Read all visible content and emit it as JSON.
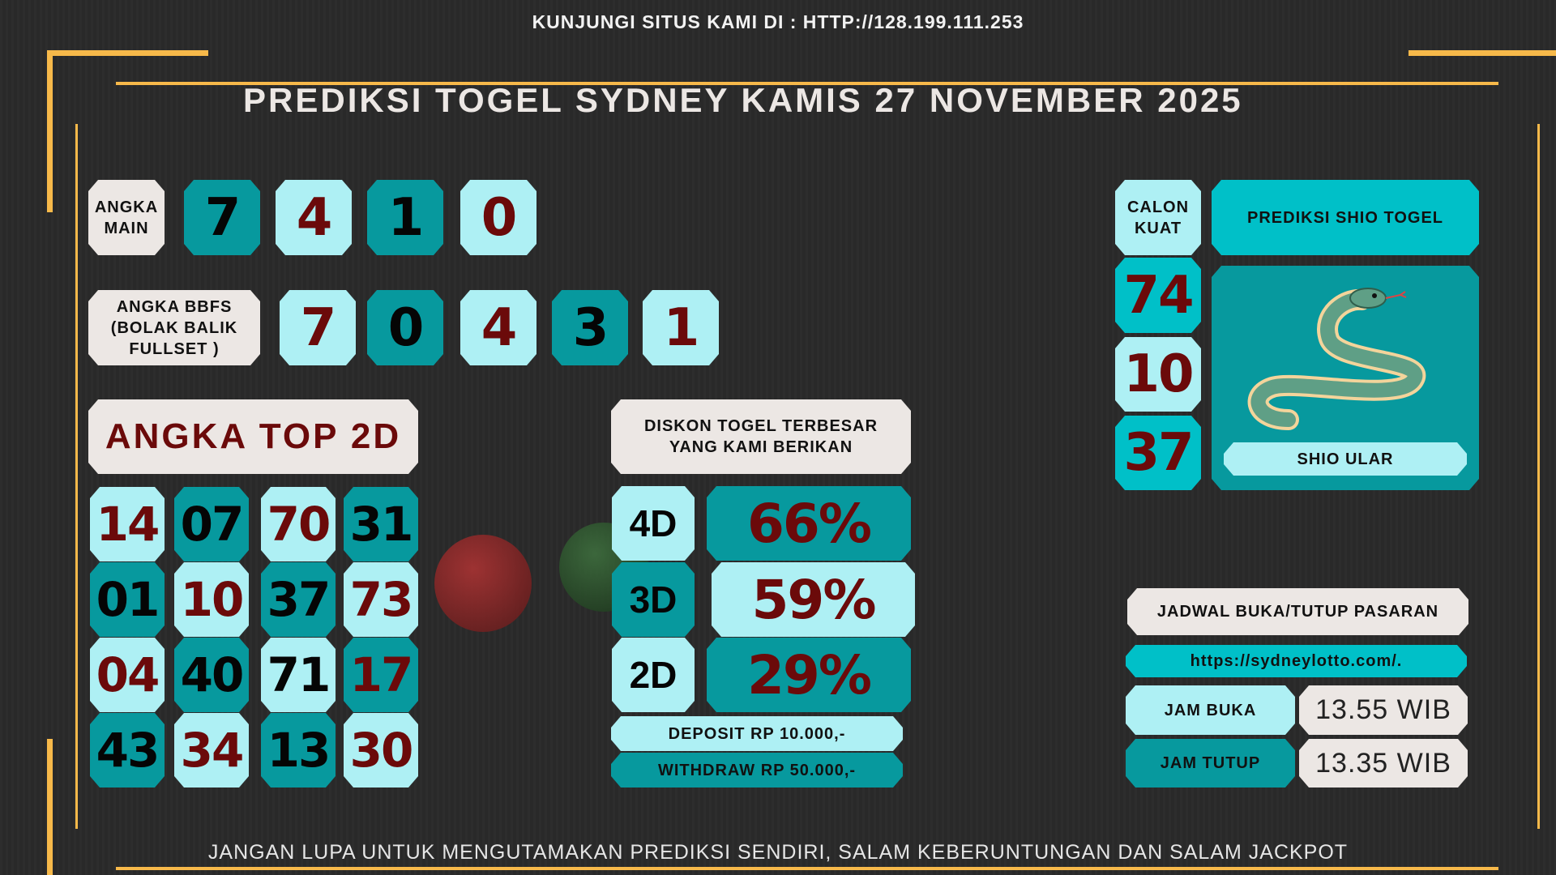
{
  "header": {
    "visit": "KUNJUNGI SITUS KAMI DI : HTTP://128.199.111.253",
    "title": "PREDIKSI TOGEL SYDNEY KAMIS 27 NOVEMBER 2025"
  },
  "angka_main": {
    "label": "ANGKA MAIN",
    "numbers": [
      "7",
      "4",
      "1",
      "0"
    ]
  },
  "bbfs": {
    "label": "ANGKA BBFS (BOLAK BALIK FULLSET )",
    "numbers": [
      "7",
      "0",
      "4",
      "3",
      "1"
    ]
  },
  "top2d": {
    "label": "ANGKA TOP 2D",
    "rows": [
      [
        "14",
        "07",
        "70",
        "31"
      ],
      [
        "01",
        "10",
        "37",
        "73"
      ],
      [
        "04",
        "40",
        "71",
        "17"
      ],
      [
        "43",
        "34",
        "13",
        "30"
      ]
    ]
  },
  "diskon": {
    "label": "DISKON TOGEL TERBESAR YANG KAMI BERIKAN",
    "items": [
      {
        "type": "4D",
        "value": "66%"
      },
      {
        "type": "3D",
        "value": "59%"
      },
      {
        "type": "2D",
        "value": "29%"
      }
    ],
    "deposit": "DEPOSIT RP 10.000,-",
    "withdraw": "WITHDRAW RP 50.000,-"
  },
  "calon_kuat": {
    "label": "CALON KUAT",
    "numbers": [
      "74",
      "10",
      "37"
    ]
  },
  "shio": {
    "label": "PREDIKSI SHIO TOGEL",
    "name": "SHIO ULAR",
    "icon": "snake-icon"
  },
  "jadwal": {
    "label": "JADWAL BUKA/TUTUP PASARAN",
    "url": "https://sydneylotto.com/.",
    "buka_label": "JAM BUKA",
    "buka": "13.55 WIB",
    "tutup_label": "JAM TUTUP",
    "tutup": "13.35 WIB"
  },
  "footer": {
    "text": "JANGAN LUPA UNTUK MENGUTAMAKAN PREDIKSI SENDIRI, SALAM KEBERUNTUNGAN DAN SALAM JACKPOT"
  },
  "colors": {
    "gold": "#f7b94a",
    "light": "#aef0f4",
    "teal": "#07999e",
    "cyan": "#00c0c8",
    "red": "#6b0a0a"
  }
}
